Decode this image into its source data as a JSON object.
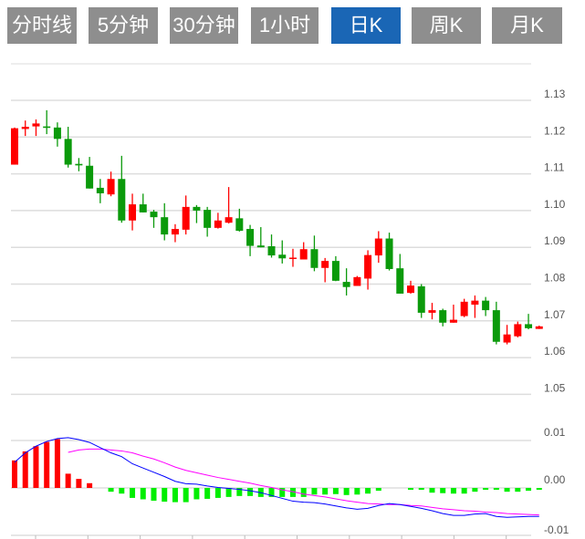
{
  "tabs": [
    {
      "label": "分时线",
      "active": false
    },
    {
      "label": "5分钟",
      "active": false
    },
    {
      "label": "30分钟",
      "active": false
    },
    {
      "label": "1小时",
      "active": false
    },
    {
      "label": "日K",
      "active": true
    },
    {
      "label": "周K",
      "active": false
    },
    {
      "label": "月K",
      "active": false
    }
  ],
  "colors": {
    "up": "#ff0000",
    "down": "#0b9a0b",
    "macd_up": "#ff0000",
    "macd_down": "#00ee00",
    "dif": "#0000ff",
    "dea": "#ff00ff",
    "tab_active": "#1a66b5",
    "tab": "#8e8e8e"
  },
  "chart_data": [
    {
      "type": "candlestick",
      "title": "",
      "y_ticks": [
        "1.13",
        "1.12",
        "1.11",
        "1.10",
        "1.09",
        "1.08",
        "1.07",
        "1.06",
        "1.05"
      ],
      "ylim": [
        1.05,
        1.138
      ],
      "grid": true,
      "ohlc": [
        [
          1.1125,
          1.1226,
          1.1125,
          1.1224
        ],
        [
          1.1222,
          1.1245,
          1.1203,
          1.1228
        ],
        [
          1.1229,
          1.1248,
          1.1203,
          1.1237
        ],
        [
          1.1229,
          1.1273,
          1.1208,
          1.1225
        ],
        [
          1.1226,
          1.124,
          1.1174,
          1.1195
        ],
        [
          1.1195,
          1.1228,
          1.1117,
          1.1125
        ],
        [
          1.1127,
          1.1143,
          1.1107,
          1.1123
        ],
        [
          1.1122,
          1.1146,
          1.106,
          1.106
        ],
        [
          1.1062,
          1.1086,
          1.102,
          1.1047
        ],
        [
          1.1044,
          1.1106,
          1.1039,
          1.1086
        ],
        [
          1.1086,
          1.1149,
          1.0967,
          1.0973
        ],
        [
          1.0973,
          1.1046,
          1.0946,
          1.1017
        ],
        [
          1.1017,
          1.1046,
          1.0995,
          1.0995
        ],
        [
          1.0997,
          1.1002,
          1.0953,
          1.0982
        ],
        [
          1.0982,
          1.102,
          1.0919,
          1.0935
        ],
        [
          1.0935,
          1.0963,
          1.0914,
          1.095
        ],
        [
          1.0948,
          1.1041,
          1.0935,
          1.101
        ],
        [
          1.101,
          1.1015,
          1.0966,
          1.1
        ],
        [
          1.1002,
          1.101,
          1.0929,
          1.0953
        ],
        [
          1.0953,
          1.0994,
          1.0951,
          1.0973
        ],
        [
          1.0967,
          1.1064,
          1.0965,
          1.0982
        ],
        [
          1.0979,
          1.1005,
          1.0943,
          1.0945
        ],
        [
          1.095,
          1.0961,
          1.0876,
          1.0904
        ],
        [
          1.0905,
          1.0955,
          1.09,
          1.09
        ],
        [
          1.0903,
          1.0935,
          1.0872,
          1.0878
        ],
        [
          1.088,
          1.0919,
          1.0856,
          1.087
        ],
        [
          1.087,
          1.0896,
          1.0847,
          1.0872
        ],
        [
          1.0867,
          1.0914,
          1.0867,
          1.0895
        ],
        [
          1.0895,
          1.0932,
          1.0835,
          1.0844
        ],
        [
          1.0844,
          1.0871,
          1.0805,
          1.0863
        ],
        [
          1.0863,
          1.0876,
          1.0808,
          1.0809
        ],
        [
          1.0806,
          1.0843,
          1.0769,
          1.0792
        ],
        [
          1.0795,
          1.0822,
          1.0795,
          1.0819
        ],
        [
          1.0815,
          1.0892,
          1.0785,
          1.0879
        ],
        [
          1.0878,
          1.0944,
          1.0858,
          1.0924
        ],
        [
          1.0924,
          1.094,
          1.0837,
          1.0841
        ],
        [
          1.0843,
          1.0882,
          1.0774,
          1.0774
        ],
        [
          1.0776,
          1.0809,
          1.0774,
          1.0796
        ],
        [
          1.0794,
          1.08,
          1.0708,
          1.0722
        ],
        [
          1.0722,
          1.0749,
          1.0704,
          1.0729
        ],
        [
          1.0729,
          1.0733,
          1.0685,
          1.0695
        ],
        [
          1.0695,
          1.0744,
          1.0695,
          1.0703
        ],
        [
          1.0713,
          1.076,
          1.071,
          1.0752
        ],
        [
          1.0744,
          1.0769,
          1.0708,
          1.0755
        ],
        [
          1.0755,
          1.0765,
          1.0713,
          1.0729
        ],
        [
          1.0729,
          1.0752,
          1.0636,
          1.0643
        ],
        [
          1.0641,
          1.0689,
          1.0636,
          1.0663
        ],
        [
          1.0658,
          1.0698,
          1.0655,
          1.0691
        ],
        [
          1.0691,
          1.0719,
          1.0677,
          1.068
        ],
        [
          1.0678,
          1.0687,
          1.0678,
          1.0685
        ]
      ]
    },
    {
      "type": "macd",
      "y_ticks": [
        "0.01",
        "0.00",
        "-0.01"
      ],
      "ylim": [
        -0.01,
        0.01
      ],
      "grid": true,
      "macd": [
        0.0058,
        0.0077,
        0.0088,
        0.0097,
        0.0103,
        0.003,
        0.0019,
        0.001,
        0,
        -0.0008,
        -0.0012,
        -0.0021,
        -0.0024,
        -0.0027,
        -0.0029,
        -0.003,
        -0.003,
        -0.0024,
        -0.0023,
        -0.0021,
        -0.0019,
        -0.0017,
        -0.0017,
        -0.0019,
        -0.0019,
        -0.0019,
        -0.0019,
        -0.0019,
        -0.0014,
        -0.0014,
        -0.0013,
        -0.0015,
        -0.0014,
        -0.0012,
        -0.0006,
        0,
        0,
        -0.0004,
        -0.0004,
        -0.001,
        -0.0011,
        -0.0012,
        -0.0012,
        -0.0008,
        -0.0004,
        -0.0004,
        -0.0008,
        -0.0008,
        -0.0006,
        -0.0004
      ],
      "dif": [
        0.0054,
        0.0074,
        0.0088,
        0.0098,
        0.0104,
        0.0106,
        0.0102,
        0.0096,
        0.0085,
        0.0074,
        0.0066,
        0.0051,
        0.0042,
        0.0033,
        0.0024,
        0.0014,
        0.0009,
        0.0008,
        0.0004,
        0.0001,
        -0.0001,
        -0.0003,
        -0.0006,
        -0.001,
        -0.0016,
        -0.0022,
        -0.0028,
        -0.003,
        -0.0031,
        -0.0034,
        -0.0038,
        -0.0042,
        -0.0045,
        -0.0043,
        -0.0037,
        -0.0033,
        -0.0035,
        -0.0039,
        -0.0043,
        -0.0048,
        -0.0054,
        -0.0058,
        -0.0058,
        -0.0055,
        -0.0054,
        -0.006,
        -0.0062,
        -0.0061,
        -0.006,
        -0.006
      ],
      "dea": [
        null,
        null,
        null,
        null,
        null,
        0.0075,
        0.008,
        0.0082,
        0.0082,
        0.008,
        0.0078,
        0.0074,
        0.0067,
        0.0061,
        0.0053,
        0.0044,
        0.0037,
        0.0032,
        0.0027,
        0.0022,
        0.0018,
        0.0014,
        0.001,
        0.0005,
        0.0001,
        -0.0004,
        -0.0008,
        -0.0013,
        -0.0016,
        -0.0019,
        -0.0023,
        -0.0027,
        -0.003,
        -0.0033,
        -0.0034,
        -0.0035,
        -0.0035,
        -0.0037,
        -0.0038,
        -0.0041,
        -0.0044,
        -0.0046,
        -0.0048,
        -0.0049,
        -0.0051,
        -0.0052,
        -0.0054,
        -0.0055,
        -0.0056,
        -0.0057
      ]
    }
  ]
}
